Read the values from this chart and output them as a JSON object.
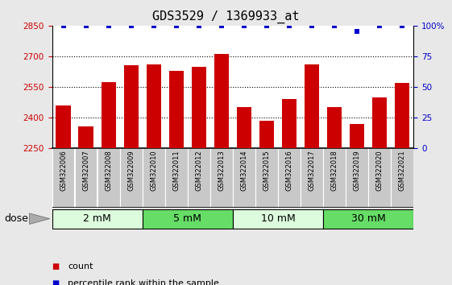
{
  "title": "GDS3529 / 1369933_at",
  "samples": [
    "GSM322006",
    "GSM322007",
    "GSM322008",
    "GSM322009",
    "GSM322010",
    "GSM322011",
    "GSM322012",
    "GSM322013",
    "GSM322014",
    "GSM322015",
    "GSM322016",
    "GSM322017",
    "GSM322018",
    "GSM322019",
    "GSM322020",
    "GSM322021"
  ],
  "bar_values": [
    2460,
    2355,
    2575,
    2655,
    2660,
    2630,
    2650,
    2710,
    2450,
    2385,
    2490,
    2660,
    2450,
    2370,
    2500,
    2570
  ],
  "percentile_values": [
    100,
    100,
    100,
    100,
    100,
    100,
    100,
    100,
    100,
    100,
    100,
    100,
    100,
    95,
    100,
    100
  ],
  "bar_color": "#cc0000",
  "percentile_color": "#0000cc",
  "ylim_left": [
    2250,
    2850
  ],
  "ylim_right": [
    0,
    100
  ],
  "yticks_left": [
    2250,
    2400,
    2550,
    2700,
    2850
  ],
  "ytick_labels_left": [
    "2250",
    "2400",
    "2550",
    "2700",
    "2850"
  ],
  "yticks_right": [
    0,
    25,
    50,
    75,
    100
  ],
  "ytick_labels_right": [
    "0",
    "25",
    "50",
    "75",
    "100%"
  ],
  "groups": [
    {
      "label": "2 mM",
      "start": 0,
      "end": 3,
      "color": "#ddfcdd"
    },
    {
      "label": "5 mM",
      "start": 4,
      "end": 7,
      "color": "#66dd66"
    },
    {
      "label": "10 mM",
      "start": 8,
      "end": 11,
      "color": "#ddfcdd"
    },
    {
      "label": "30 mM",
      "start": 12,
      "end": 15,
      "color": "#66dd66"
    }
  ],
  "dose_label": "dose",
  "legend_count_label": "count",
  "legend_percentile_label": "percentile rank within the sample",
  "title_fontsize": 11,
  "tick_fontsize": 7.5,
  "bar_width": 0.65,
  "background_plot": "#ffffff",
  "background_xtick": "#c8c8c8",
  "fig_bg": "#e8e8e8"
}
